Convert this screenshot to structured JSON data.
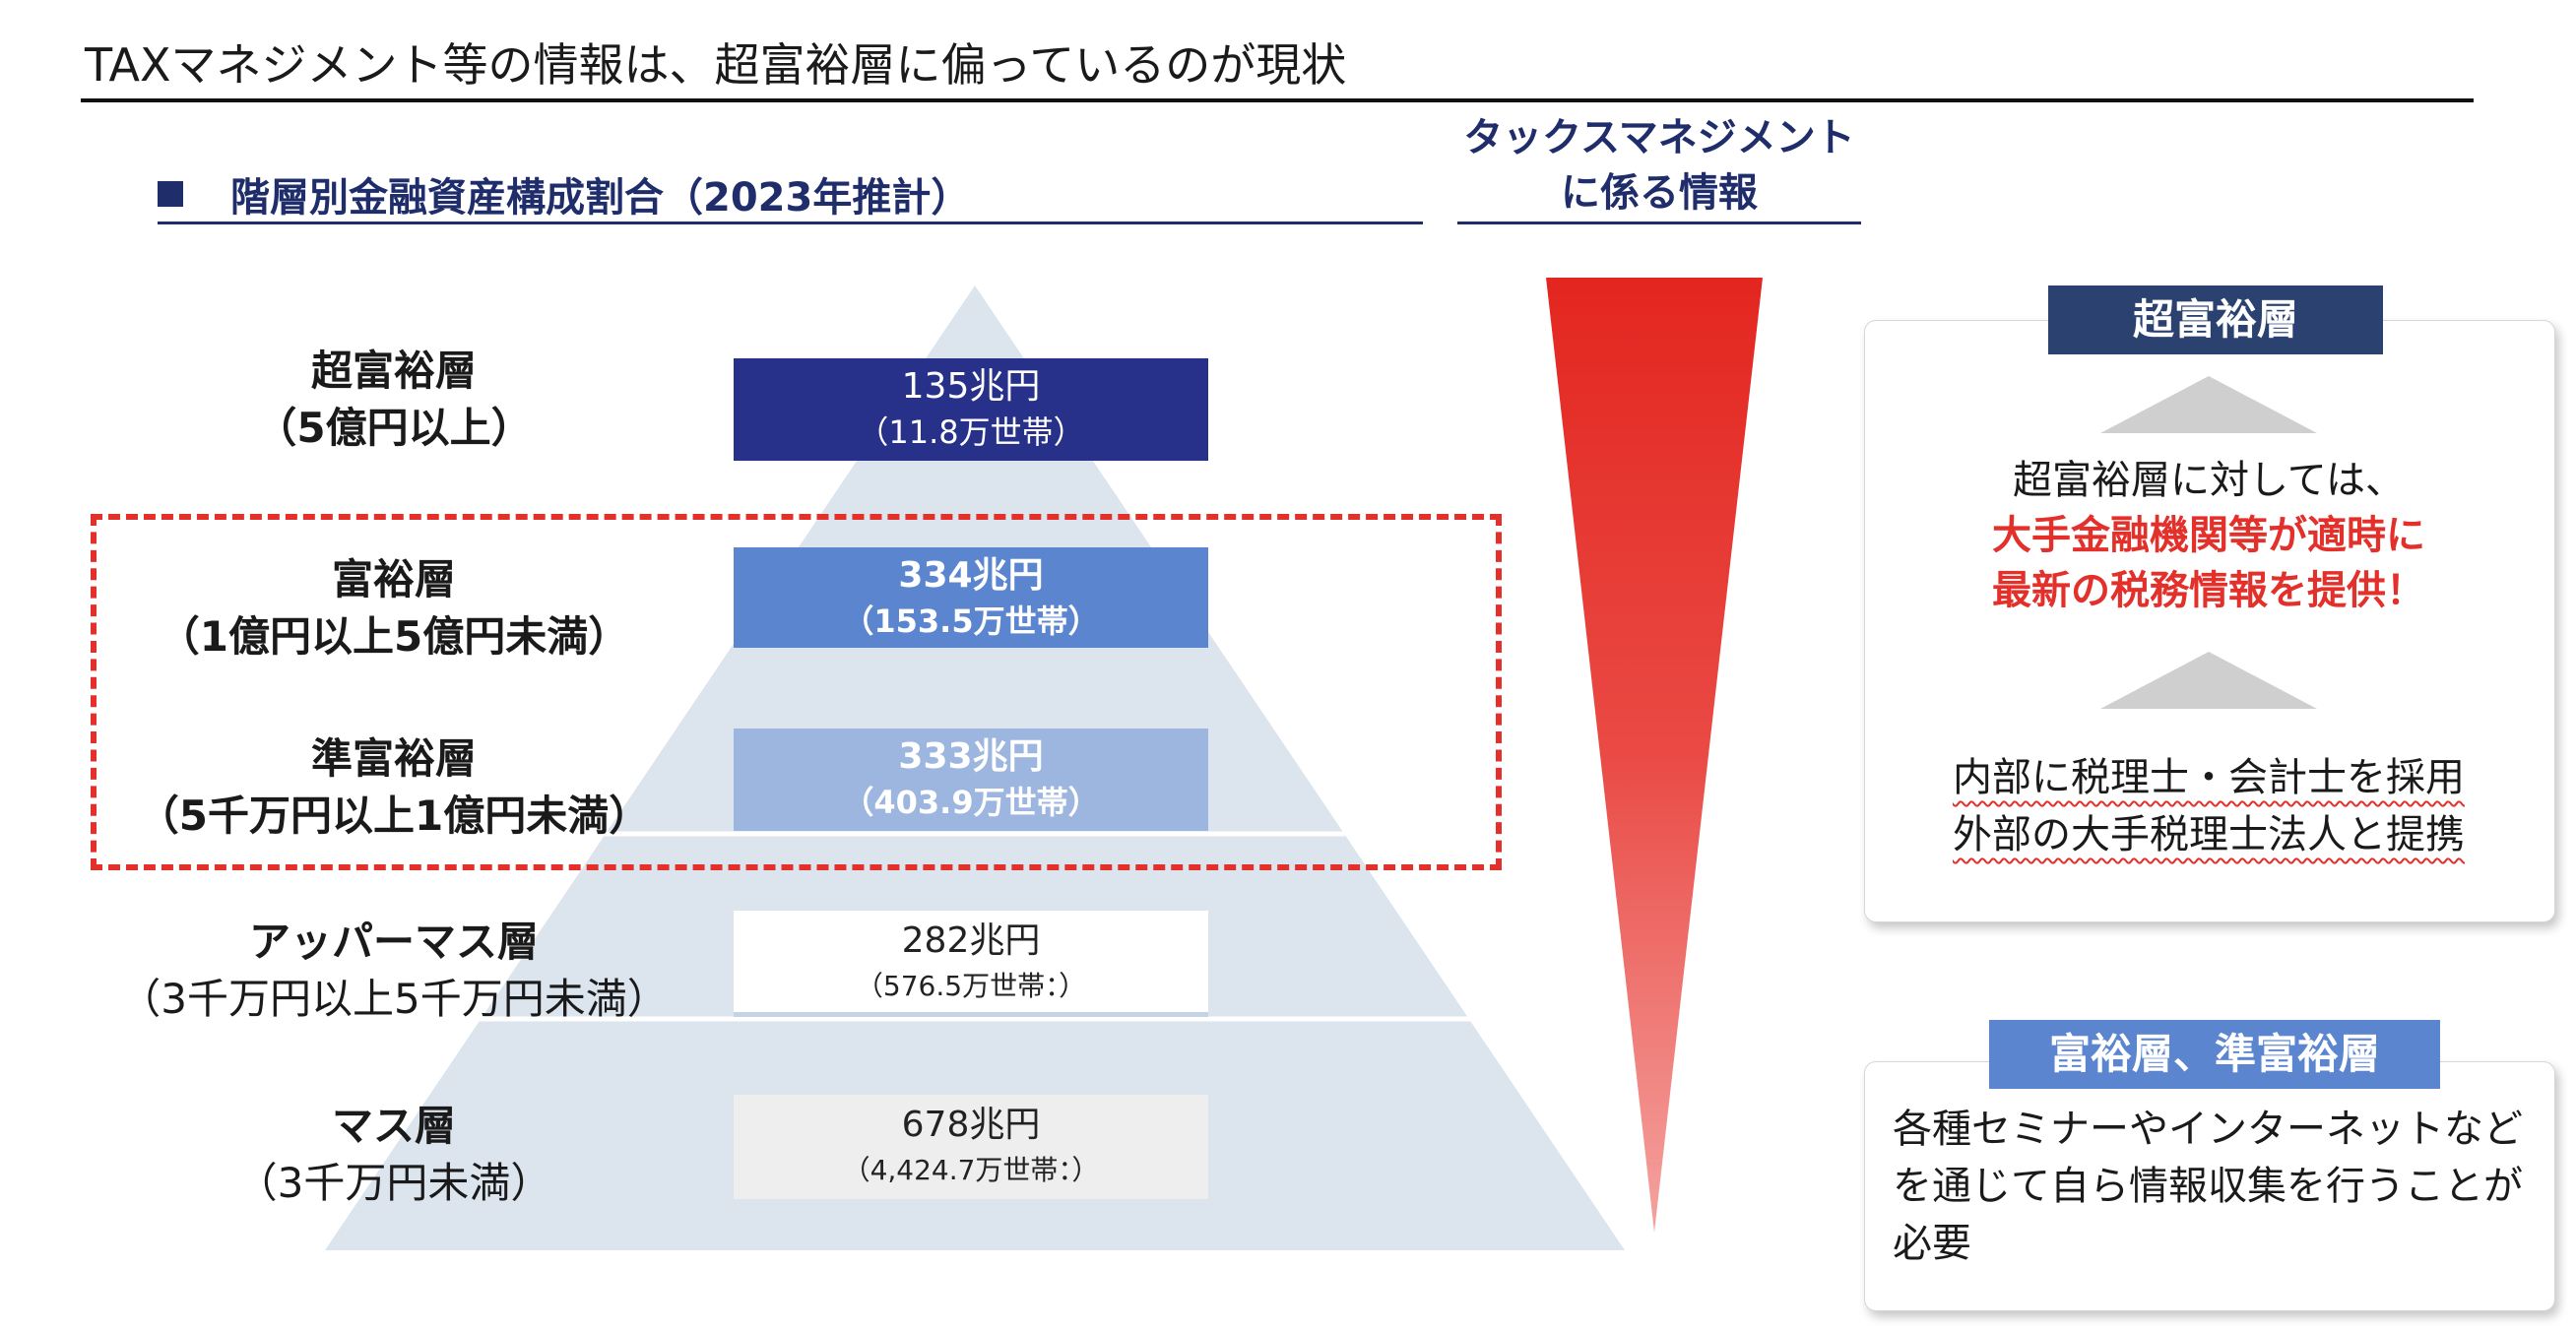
{
  "title": "TAXマネジメント等の情報は、超富裕層に偏っているのが現状",
  "section_heading": "階層別金融資産構成割合（2023年推計）",
  "tax_heading_line1": "タックスマネジメント",
  "tax_heading_line2": "に係る情報",
  "tiers": [
    {
      "name": "超富裕層",
      "range": "（5億円以上）",
      "amount": "135兆円",
      "households": "（11.8万世帯）"
    },
    {
      "name": "富裕層",
      "range": "（1億円以上5億円未満）",
      "amount": "334兆円",
      "households": "（153.5万世帯）"
    },
    {
      "name": "準富裕層",
      "range": "（5千万円以上1億円未満）",
      "amount": "333兆円",
      "households": "（403.9万世帯）"
    },
    {
      "name": "アッパーマス層",
      "range": "（3千万円以上5千万円未満）",
      "amount": "282兆円",
      "households": "（576.5万世帯：）"
    },
    {
      "name": "マス層",
      "range": "（3千万円未満）",
      "amount": "678兆円",
      "households": "（4,424.7万世帯：）"
    }
  ],
  "panel_top": {
    "tag": "超富裕層",
    "line1": "超富裕層に対しては、",
    "line2": "大手金融機関等が適時に",
    "line3": "最新の税務情報を提供！",
    "line4": "内部に税理士・会計士を採用",
    "line5": "外部の大手税理士法人と提携"
  },
  "panel_bottom": {
    "tag": "富裕層、準富裕層",
    "text": "各種セミナーやインターネットなどを通じて自ら情報収集を行うことが必要"
  },
  "colors": {
    "navy": "#28318a",
    "heading_blue": "#1f2d6b",
    "mid_blue": "#5b86cf",
    "light_blue": "#9db6df",
    "pyramid": "#dce4ee",
    "accent_red": "#e3302b"
  }
}
